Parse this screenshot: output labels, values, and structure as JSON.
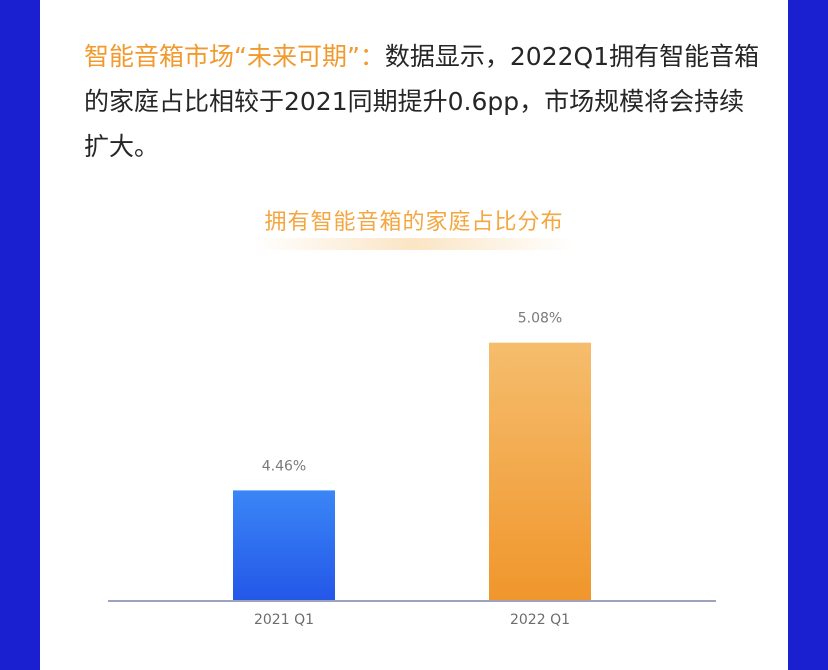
{
  "headline": {
    "highlight": "智能音箱市场“未来可期”：",
    "body": "数据显示，2022Q1拥有智能音箱的家庭占比相较于2021同期提升0.6pp，市场规模将会持续扩大。"
  },
  "colors": {
    "background_frame": "#1a1fd0",
    "accent_orange": "#f29a2e",
    "bar_blue": "#2f6ff0",
    "bar_orange": "#f2a540"
  },
  "chart_data": {
    "type": "bar",
    "title": "拥有智能音箱的家庭占比分布",
    "categories": [
      "2021 Q1",
      "2022 Q1"
    ],
    "values": [
      4.46,
      5.08
    ],
    "value_labels": [
      "4.46%",
      "5.08%"
    ],
    "ylim": [
      4.0,
      5.15
    ],
    "xlabel": "",
    "ylabel": "",
    "grid": false
  }
}
